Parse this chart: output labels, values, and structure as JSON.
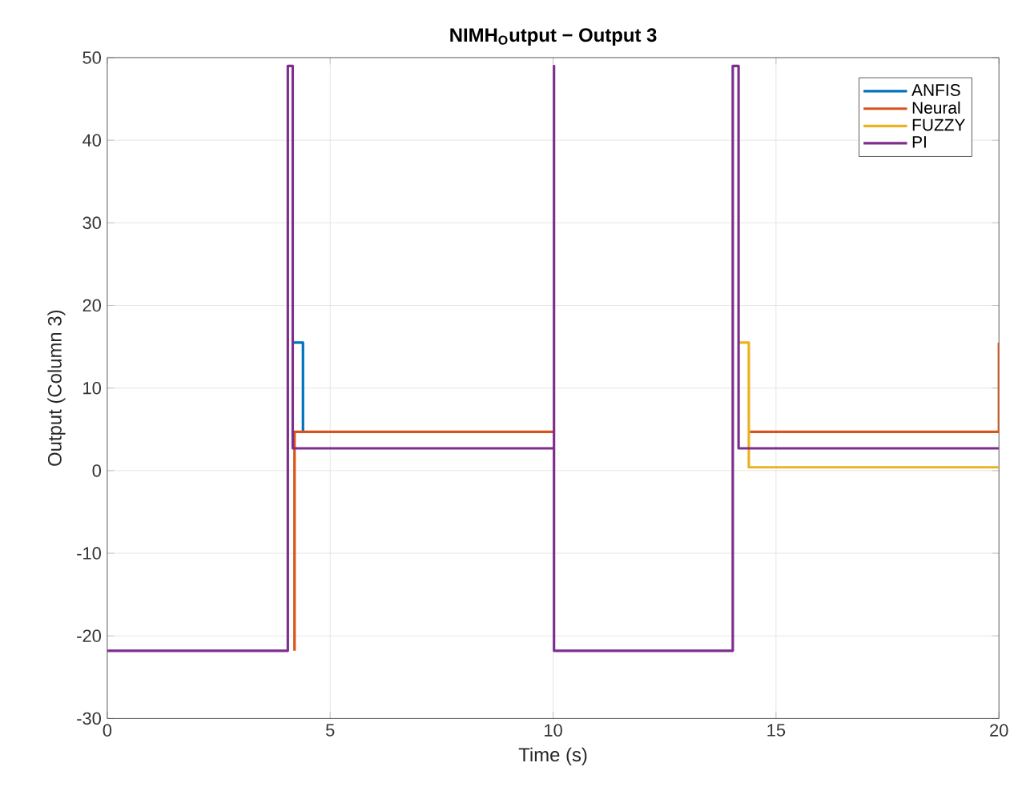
{
  "chart_data": {
    "type": "line",
    "title": "**NIMH$_{O}$utput − Output 3**",
    "xlabel": "Time (s)",
    "ylabel": "Output (Column 3)",
    "xlim": [
      0,
      20
    ],
    "ylim": [
      -30,
      50
    ],
    "xticks": [
      0,
      5,
      10,
      15,
      20
    ],
    "yticks": [
      -30,
      -20,
      -10,
      0,
      10,
      20,
      30,
      40,
      50
    ],
    "grid": true,
    "legend": "top right",
    "line_style": "solid",
    "marker": "none",
    "series": [
      {
        "name": "ANFIS",
        "color": "#0072bd",
        "x": [
          4.18,
          4.39,
          4.39
        ],
        "values": [
          15.5,
          15.5,
          4.7
        ]
      },
      {
        "name": "Neural",
        "color": "#d95319",
        "x": [
          4.2,
          4.2,
          10,
          12,
          14.4,
          20,
          20
        ],
        "values": [
          -21.8,
          4.7,
          4.7,
          null,
          4.7,
          4.7,
          15.5
        ]
      },
      {
        "name": "FUZZY",
        "color": "#edb120",
        "x": [
          14.16,
          14.39,
          14.39,
          20
        ],
        "values": [
          15.5,
          15.5,
          0.4,
          0.4
        ]
      },
      {
        "name": "PI",
        "color": "#7e2f8e",
        "x": [
          0,
          4.05,
          4.05,
          4.16,
          4.16,
          10.02,
          10.02,
          10.02,
          14.03,
          14.03,
          14.16,
          14.16,
          20
        ],
        "values": [
          -21.8,
          -21.8,
          49,
          49,
          2.7,
          2.7,
          49,
          -21.8,
          -21.8,
          49,
          49,
          2.7,
          2.7
        ]
      }
    ]
  }
}
